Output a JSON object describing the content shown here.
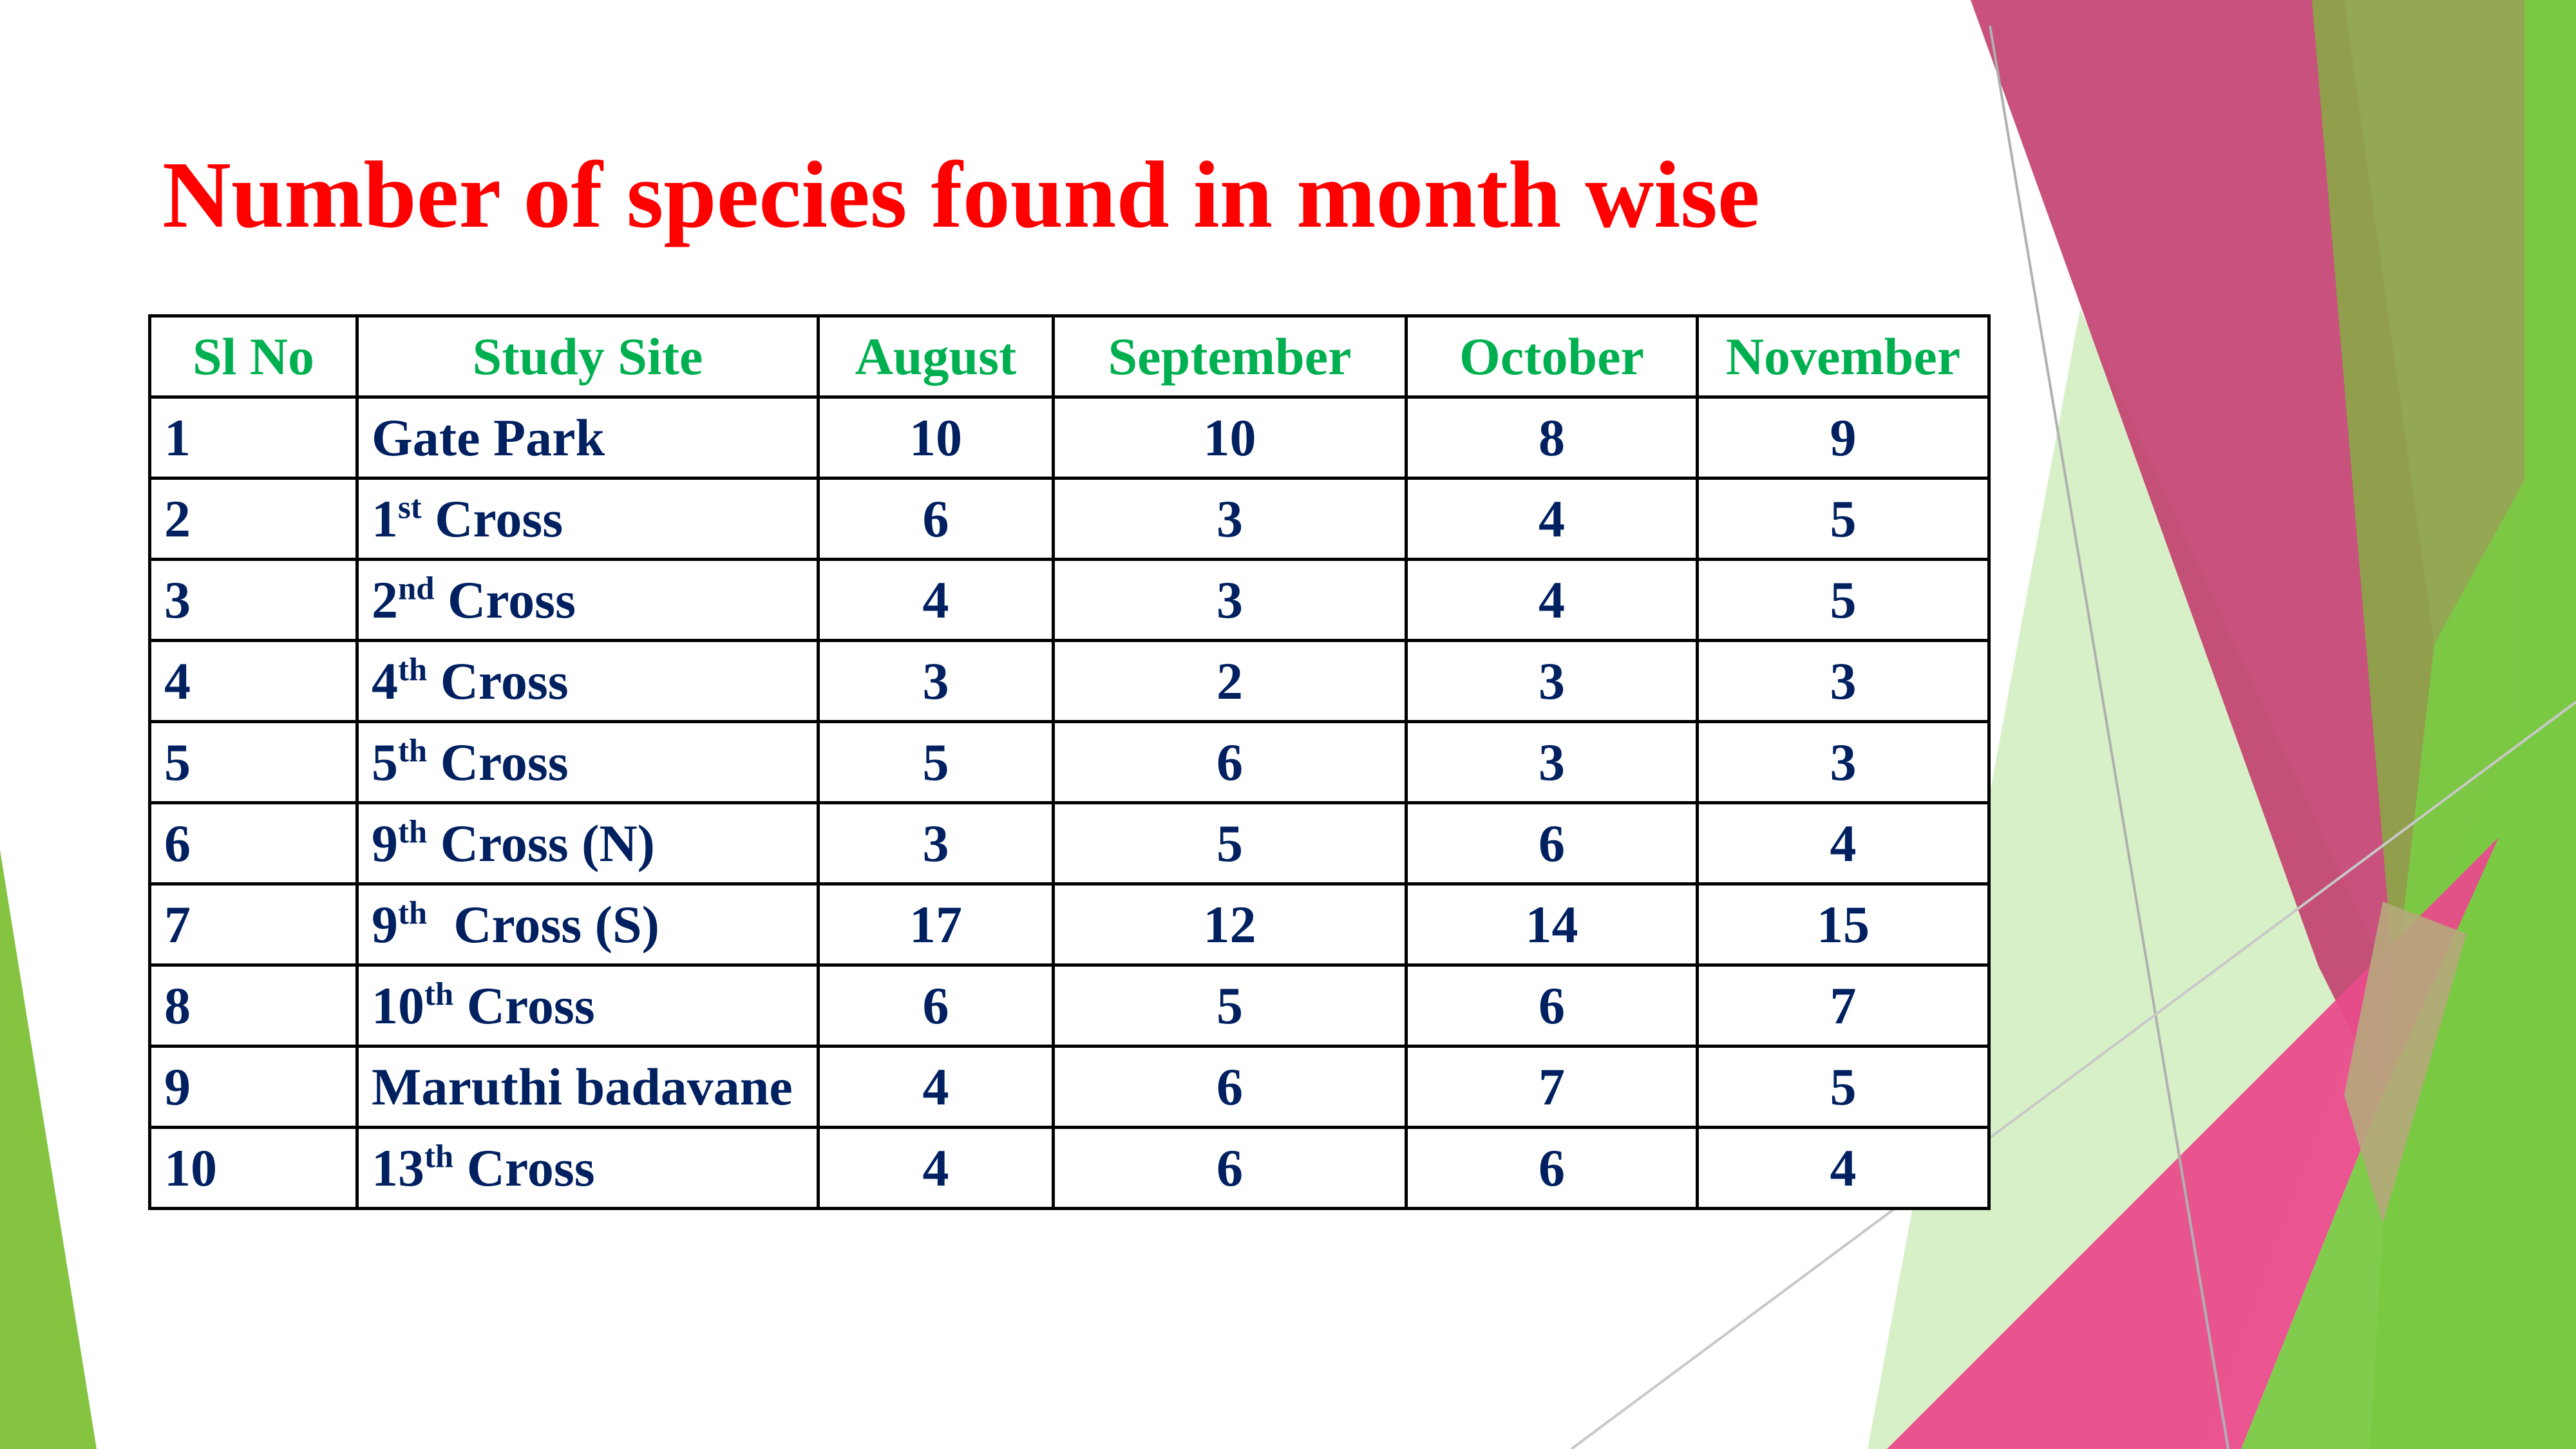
{
  "slide": {
    "title": "Number of species found in month wise",
    "colors": {
      "title": "#ff0000",
      "header_text": "#00b050",
      "body_text": "#002060",
      "accent_green": "#7ac943",
      "accent_magenta": "#c0396b",
      "accent_pink": "#e94c8b",
      "accent_olive": "#8ea24a"
    }
  },
  "table": {
    "headers": [
      "Sl No",
      "Study Site",
      "August",
      "September",
      "October",
      "November"
    ],
    "rows": [
      {
        "sl": "1",
        "site": "Gate Park",
        "site_suffix": "",
        "aug": "10",
        "sep": "10",
        "oct": "8",
        "nov": "9"
      },
      {
        "sl": "2",
        "site": "1",
        "sup": "st",
        "site_suffix": " Cross",
        "aug": "6",
        "sep": "3",
        "oct": "4",
        "nov": "5"
      },
      {
        "sl": "3",
        "site": "2",
        "sup": "nd",
        "site_suffix": " Cross",
        "aug": "4",
        "sep": "3",
        "oct": "4",
        "nov": "5"
      },
      {
        "sl": "4",
        "site": "4",
        "sup": "th",
        "site_suffix": " Cross",
        "aug": "3",
        "sep": "2",
        "oct": "3",
        "nov": "3"
      },
      {
        "sl": "5",
        "site": "5",
        "sup": "th",
        "site_suffix": " Cross",
        "aug": "5",
        "sep": "6",
        "oct": "3",
        "nov": "3"
      },
      {
        "sl": "6",
        "site": "9",
        "sup": "th",
        "site_suffix": " Cross (N)",
        "aug": "3",
        "sep": "5",
        "oct": "6",
        "nov": "4"
      },
      {
        "sl": "7",
        "site": "9",
        "sup": "th",
        "site_suffix": "  Cross (S)",
        "aug": "17",
        "sep": "12",
        "oct": "14",
        "nov": "15"
      },
      {
        "sl": "8",
        "site": "10",
        "sup": "th",
        "site_suffix": " Cross",
        "aug": "6",
        "sep": "5",
        "oct": "6",
        "nov": "7"
      },
      {
        "sl": "9",
        "site": "Maruthi badavane",
        "site_suffix": "",
        "aug": "4",
        "sep": "6",
        "oct": "7",
        "nov": "5"
      },
      {
        "sl": "10",
        "site": "13",
        "sup": "th",
        "site_suffix": " Cross",
        "aug": "4",
        "sep": "6",
        "oct": "6",
        "nov": "4"
      }
    ]
  }
}
